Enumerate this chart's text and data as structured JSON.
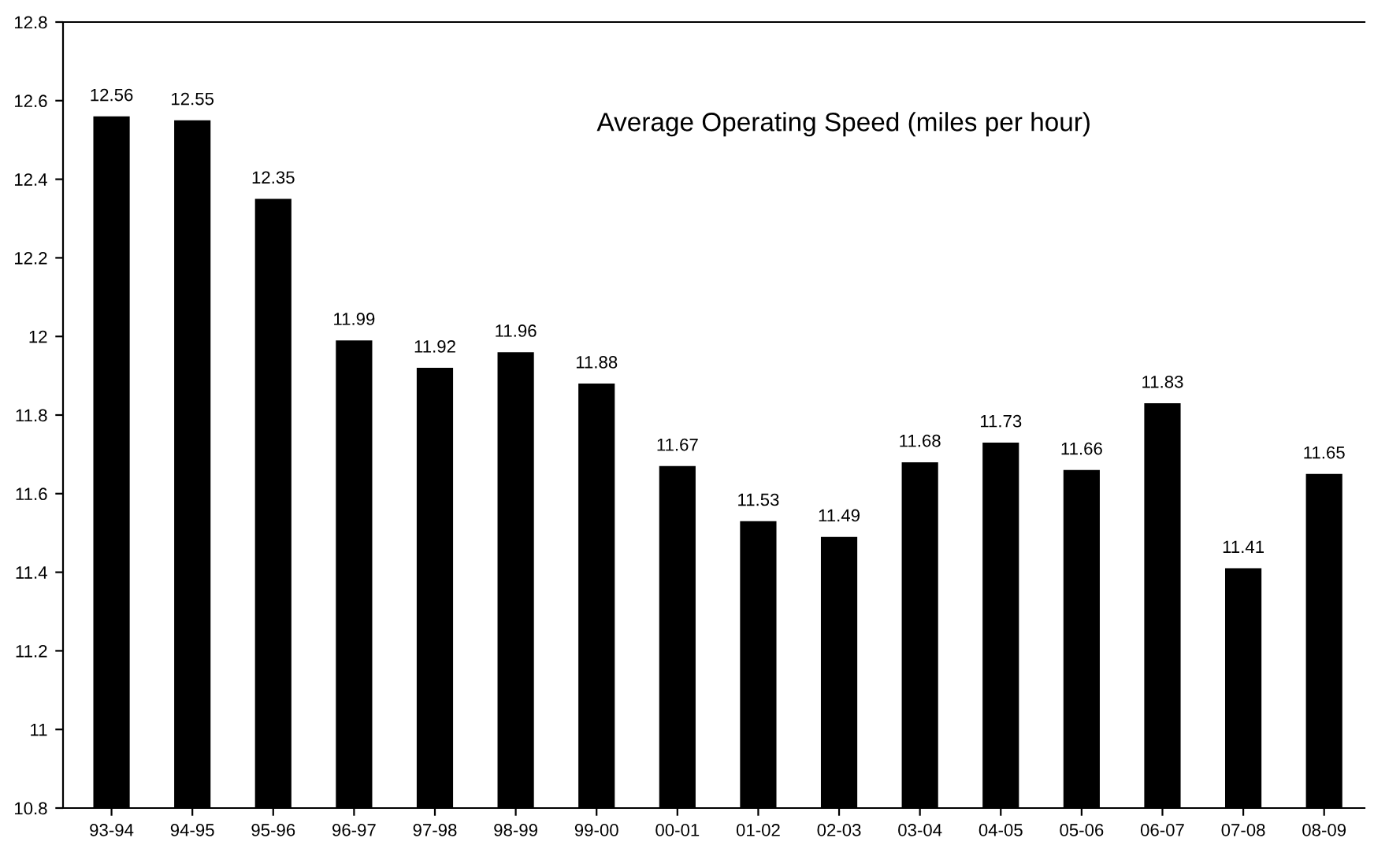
{
  "chart_data": {
    "type": "bar",
    "title": "Average Operating Speed (miles per hour)",
    "categories": [
      "93-94",
      "94-95",
      "95-96",
      "96-97",
      "97-98",
      "98-99",
      "99-00",
      "00-01",
      "01-02",
      "02-03",
      "03-04",
      "04-05",
      "05-06",
      "06-07",
      "07-08",
      "08-09"
    ],
    "values": [
      12.56,
      12.55,
      12.35,
      11.99,
      11.92,
      11.96,
      11.88,
      11.67,
      11.53,
      11.49,
      11.68,
      11.73,
      11.66,
      11.83,
      11.41,
      11.65
    ],
    "color": "#000000",
    "ylim": [
      10.8,
      12.8
    ],
    "yticks": [
      10.8,
      11,
      11.2,
      11.4,
      11.6,
      11.8,
      12,
      12.2,
      12.4,
      12.6,
      12.8
    ],
    "data_labels": true,
    "grid": false
  }
}
